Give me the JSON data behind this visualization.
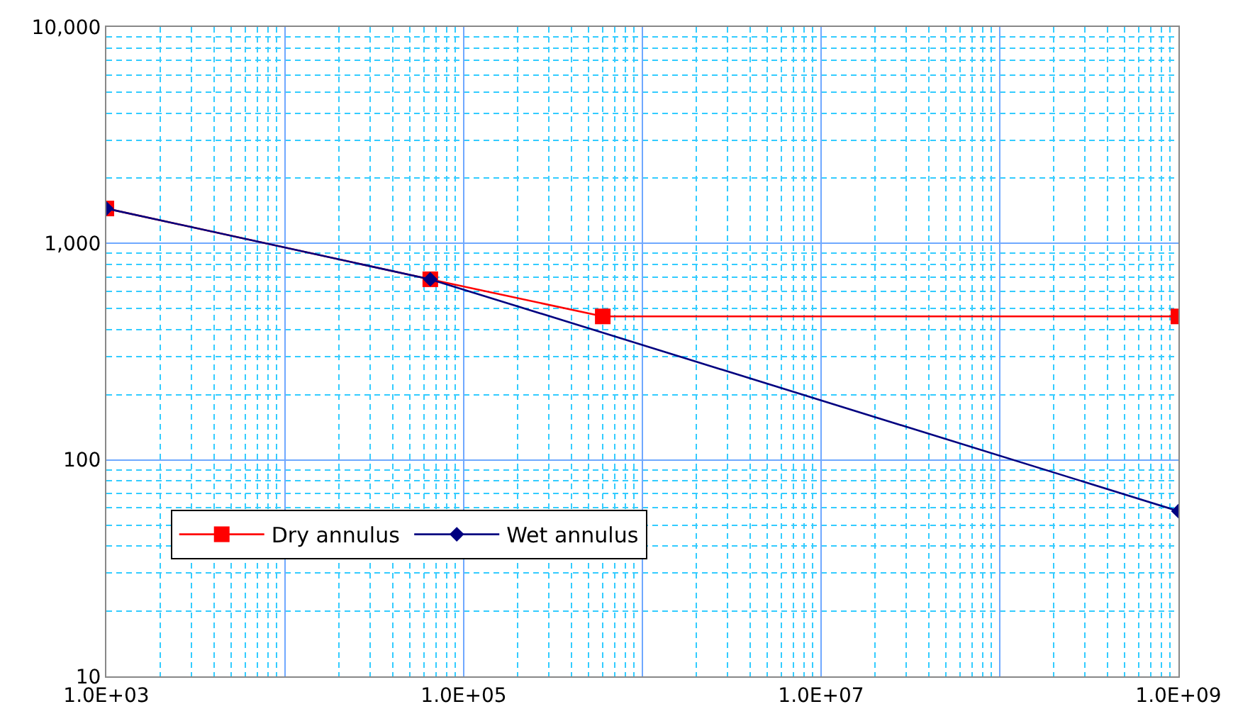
{
  "chart_data": {
    "type": "line",
    "log": "xy",
    "grid": true,
    "legend": "bottom left",
    "line_style": "solid",
    "series": [
      {
        "name": "Dry annulus",
        "color": "#ff0000",
        "marker": "square",
        "x": [
          1000,
          65000,
          600000,
          1000000000
        ],
        "values": [
          1450,
          683,
          460,
          460
        ]
      },
      {
        "name": "Wet annulus",
        "color": "#000080",
        "marker": "diamond",
        "x": [
          1000,
          65000,
          1000000000
        ],
        "values": [
          1450,
          683,
          58
        ]
      }
    ],
    "xlim": [
      1000,
      1000000000
    ],
    "ylim": [
      10,
      10000
    ],
    "xticks": [
      {
        "value": 1000,
        "label": "1.0E+03"
      },
      {
        "value": 2000,
        "label": null
      },
      {
        "value": 3000,
        "label": null
      },
      {
        "value": 4000,
        "label": null
      },
      {
        "value": 5000,
        "label": null
      },
      {
        "value": 6000,
        "label": null
      },
      {
        "value": 7000,
        "label": null
      },
      {
        "value": 8000,
        "label": null
      },
      {
        "value": 9000,
        "label": null
      },
      {
        "value": 10000,
        "label": null
      },
      {
        "value": 20000,
        "label": null
      },
      {
        "value": 30000,
        "label": null
      },
      {
        "value": 40000,
        "label": null
      },
      {
        "value": 50000,
        "label": null
      },
      {
        "value": 60000,
        "label": null
      },
      {
        "value": 70000,
        "label": null
      },
      {
        "value": 80000,
        "label": null
      },
      {
        "value": 90000,
        "label": null
      },
      {
        "value": 100000,
        "label": "1.0E+05"
      },
      {
        "value": 200000,
        "label": null
      },
      {
        "value": 300000,
        "label": null
      },
      {
        "value": 400000,
        "label": null
      },
      {
        "value": 500000,
        "label": null
      },
      {
        "value": 600000,
        "label": null
      },
      {
        "value": 700000,
        "label": null
      },
      {
        "value": 800000,
        "label": null
      },
      {
        "value": 900000,
        "label": null
      },
      {
        "value": 1000000,
        "label": null
      },
      {
        "value": 2000000,
        "label": null
      },
      {
        "value": 3000000,
        "label": null
      },
      {
        "value": 4000000,
        "label": null
      },
      {
        "value": 5000000,
        "label": null
      },
      {
        "value": 6000000,
        "label": null
      },
      {
        "value": 7000000,
        "label": null
      },
      {
        "value": 8000000,
        "label": null
      },
      {
        "value": 9000000,
        "label": null
      },
      {
        "value": 10000000,
        "label": "1.0E+07"
      },
      {
        "value": 20000000,
        "label": null
      },
      {
        "value": 30000000,
        "label": null
      },
      {
        "value": 40000000,
        "label": null
      },
      {
        "value": 50000000,
        "label": null
      },
      {
        "value": 60000000,
        "label": null
      },
      {
        "value": 70000000,
        "label": null
      },
      {
        "value": 80000000,
        "label": null
      },
      {
        "value": 90000000,
        "label": null
      },
      {
        "value": 100000000,
        "label": null
      },
      {
        "value": 200000000,
        "label": null
      },
      {
        "value": 300000000,
        "label": null
      },
      {
        "value": 400000000,
        "label": null
      },
      {
        "value": 500000000,
        "label": null
      },
      {
        "value": 600000000,
        "label": null
      },
      {
        "value": 700000000,
        "label": null
      },
      {
        "value": 800000000,
        "label": null
      },
      {
        "value": 900000000,
        "label": null
      },
      {
        "value": 1000000000,
        "label": "1.0E+09"
      }
    ],
    "yticks": [
      {
        "value": 10,
        "label": "10"
      },
      {
        "value": 20,
        "label": null
      },
      {
        "value": 30,
        "label": null
      },
      {
        "value": 40,
        "label": null
      },
      {
        "value": 50,
        "label": null
      },
      {
        "value": 60,
        "label": null
      },
      {
        "value": 70,
        "label": null
      },
      {
        "value": 80,
        "label": null
      },
      {
        "value": 90,
        "label": null
      },
      {
        "value": 100,
        "label": "100"
      },
      {
        "value": 200,
        "label": null
      },
      {
        "value": 300,
        "label": null
      },
      {
        "value": 400,
        "label": null
      },
      {
        "value": 500,
        "label": null
      },
      {
        "value": 600,
        "label": null
      },
      {
        "value": 700,
        "label": null
      },
      {
        "value": 800,
        "label": null
      },
      {
        "value": 900,
        "label": null
      },
      {
        "value": 1000,
        "label": "1,000"
      },
      {
        "value": 2000,
        "label": null
      },
      {
        "value": 3000,
        "label": null
      },
      {
        "value": 4000,
        "label": null
      },
      {
        "value": 5000,
        "label": null
      },
      {
        "value": 6000,
        "label": null
      },
      {
        "value": 7000,
        "label": null
      },
      {
        "value": 8000,
        "label": null
      },
      {
        "value": 9000,
        "label": null
      },
      {
        "value": 10000,
        "label": "10,000"
      }
    ]
  }
}
